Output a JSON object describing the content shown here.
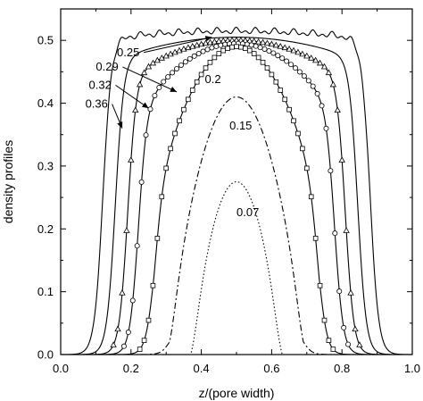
{
  "chart_data": {
    "type": "line",
    "title": "",
    "xlabel": "z/(pore width)",
    "ylabel": "density profiles",
    "xlim": [
      0.0,
      1.0
    ],
    "ylim": [
      0.0,
      0.55
    ],
    "xticks": [
      "0.0",
      "0.2",
      "0.4",
      "0.6",
      "0.8",
      "1.0"
    ],
    "yticks": [
      "0.0",
      "0.1",
      "0.2",
      "0.3",
      "0.4",
      "0.5"
    ],
    "grid": false,
    "legend": "none",
    "series": [
      {
        "name": "0.36",
        "style": "solid",
        "marker": "none",
        "plateau": 0.515,
        "left_edge": 0.12,
        "right_edge": 0.88,
        "curvature": 0.025
      },
      {
        "name": "0.32",
        "style": "solid",
        "marker": "none",
        "plateau": 0.505,
        "left_edge": 0.155,
        "right_edge": 0.845,
        "curvature": 0.07
      },
      {
        "name": "0.29",
        "style": "solid",
        "marker": "triangle",
        "plateau": 0.5,
        "left_edge": 0.19,
        "right_edge": 0.81,
        "curvature": 0.12
      },
      {
        "name": "0.25",
        "style": "solid",
        "marker": "circle",
        "plateau": 0.495,
        "left_edge": 0.22,
        "right_edge": 0.78,
        "curvature": 0.22
      },
      {
        "name": "0.2",
        "style": "solid",
        "marker": "square",
        "plateau": 0.49,
        "left_edge": 0.265,
        "right_edge": 0.735,
        "curvature": 0.5
      },
      {
        "name": "0.15",
        "style": "dashdot",
        "marker": "none",
        "plateau": 0.41,
        "left_edge": 0.31,
        "right_edge": 0.69,
        "curvature": 0.9
      },
      {
        "name": "0.07",
        "style": "dotted",
        "marker": "none",
        "plateau": 0.275,
        "left_edge": 0.37,
        "right_edge": 0.63,
        "curvature": 1.0
      }
    ],
    "annotations": [
      {
        "text": "0.25",
        "x": 0.16,
        "y": 0.475,
        "arrow_to": [
          0.43,
          0.505
        ]
      },
      {
        "text": "0.29",
        "x": 0.1,
        "y": 0.452,
        "arrow_to": [
          0.33,
          0.418
        ]
      },
      {
        "text": "0.32",
        "x": 0.08,
        "y": 0.423,
        "arrow_to": [
          0.25,
          0.392
        ]
      },
      {
        "text": "0.36",
        "x": 0.07,
        "y": 0.393,
        "arrow_to": [
          0.175,
          0.36
        ]
      },
      {
        "text": "0.2",
        "x": 0.41,
        "y": 0.432
      },
      {
        "text": "0.15",
        "x": 0.48,
        "y": 0.358
      },
      {
        "text": "0.07",
        "x": 0.5,
        "y": 0.22
      }
    ]
  }
}
